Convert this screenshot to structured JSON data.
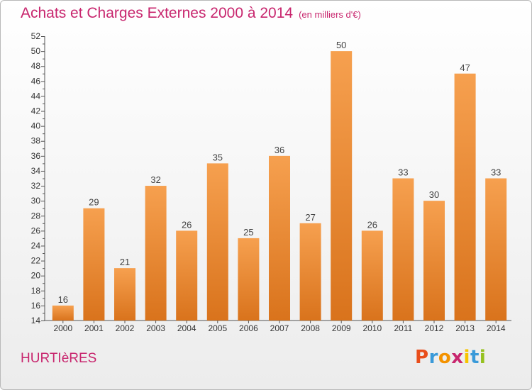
{
  "header": {
    "title": "Achats et Charges Externes 2000 à 2014",
    "subtitle": "(en milliers d'€)"
  },
  "footer": {
    "commune": "HURTIèRES",
    "logo_letters": [
      "P",
      "r",
      "o",
      "x",
      "i",
      "t",
      "i"
    ],
    "logo_colors": [
      "#e94e1b",
      "#3a9ad9",
      "#f39200",
      "#c8266e",
      "#f7c400",
      "#3a9ad9",
      "#95c11f"
    ]
  },
  "chart_data": {
    "type": "bar",
    "categories": [
      "2000",
      "2001",
      "2002",
      "2003",
      "2004",
      "2005",
      "2006",
      "2007",
      "2008",
      "2009",
      "2010",
      "2011",
      "2012",
      "2013",
      "2014"
    ],
    "values": [
      16,
      29,
      21,
      32,
      26,
      35,
      25,
      36,
      27,
      50,
      26,
      33,
      30,
      47,
      33
    ],
    "ylim": [
      14,
      52
    ],
    "yticks": [
      14,
      16,
      18,
      20,
      22,
      24,
      26,
      28,
      30,
      32,
      34,
      36,
      38,
      40,
      42,
      44,
      46,
      48,
      50,
      52
    ],
    "grid": false,
    "bar_color_top": "#f6a04f",
    "bar_color_bottom": "#d9731c"
  }
}
